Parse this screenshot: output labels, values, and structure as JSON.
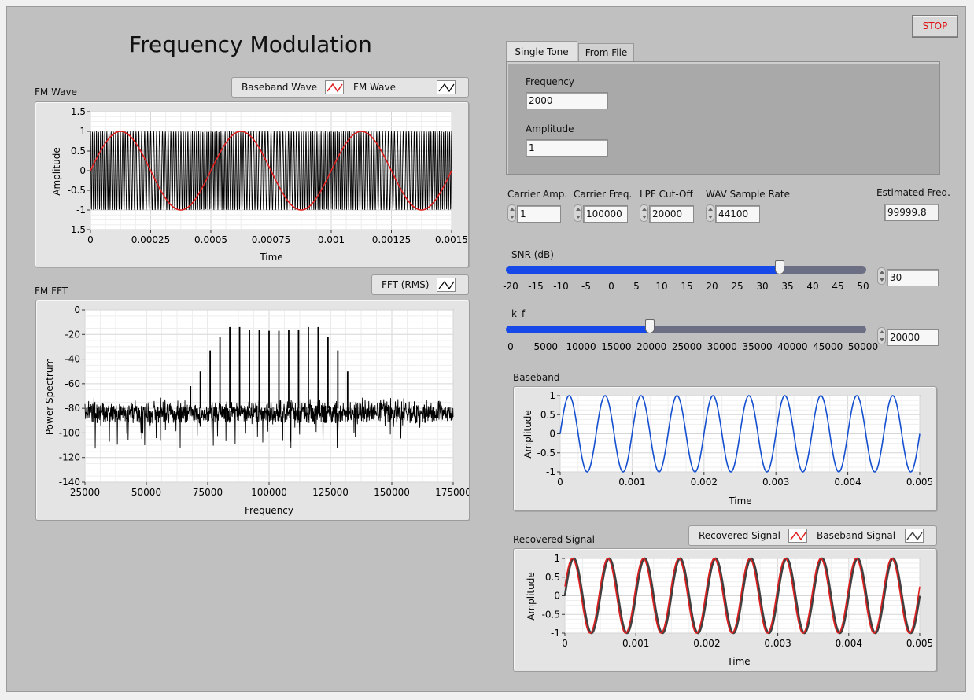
{
  "app": {
    "title": "Frequency Modulation",
    "stop_label": "STOP"
  },
  "fm_wave": {
    "label": "FM Wave",
    "legend": [
      {
        "name": "Baseband Wave",
        "color": "#e02020"
      },
      {
        "name": "FM Wave",
        "color": "#000000"
      }
    ],
    "xlabel": "Time",
    "ylabel": "Amplitude",
    "xticks": [
      "0",
      "0.00025",
      "0.0005",
      "0.00075",
      "0.001",
      "0.00125",
      "0.0015"
    ],
    "yticks": [
      "1.5",
      "1",
      "0.5",
      "0",
      "-0.5",
      "-1",
      "-1.5"
    ]
  },
  "fm_fft": {
    "label": "FM FFT",
    "legend": [
      {
        "name": "FFT (RMS)",
        "color": "#000000"
      }
    ],
    "xlabel": "Frequency",
    "ylabel": "Power Spectrum",
    "xticks": [
      "25000",
      "50000",
      "75000",
      "100000",
      "125000",
      "150000",
      "175000"
    ],
    "yticks": [
      "0",
      "-20",
      "-40",
      "-60",
      "-80",
      "-100",
      "-120",
      "-140"
    ]
  },
  "tabs": [
    {
      "label": "Single Tone",
      "active": true
    },
    {
      "label": "From File",
      "active": false
    }
  ],
  "single_tone": {
    "frequency_label": "Frequency",
    "frequency_value": "2000",
    "amplitude_label": "Amplitude",
    "amplitude_value": "1"
  },
  "controls": {
    "carrier_amp": {
      "label": "Carrier Amp.",
      "value": "1"
    },
    "carrier_freq": {
      "label": "Carrier Freq.",
      "value": "100000"
    },
    "lpf_cutoff": {
      "label": "LPF Cut-Off",
      "value": "20000"
    },
    "wav_rate": {
      "label": "WAV Sample Rate",
      "value": "44100"
    },
    "est_freq": {
      "label": "Estimated Freq.",
      "value": "99999.8"
    }
  },
  "snr": {
    "label": "SNR (dB)",
    "value": "30",
    "level": 0.76,
    "ticks": [
      "-20",
      "-15",
      "-10",
      "-5",
      "0",
      "5",
      "10",
      "15",
      "20",
      "25",
      "30",
      "35",
      "40",
      "45",
      "50"
    ]
  },
  "kf": {
    "label": "k_f",
    "value": "20000",
    "level": 0.4,
    "ticks": [
      "0",
      "5000",
      "10000",
      "15000",
      "20000",
      "25000",
      "30000",
      "35000",
      "40000",
      "45000",
      "50000"
    ]
  },
  "baseband": {
    "label": "Baseband",
    "xlabel": "Time",
    "ylabel": "Amplitude",
    "xticks": [
      "0",
      "0.001",
      "0.002",
      "0.003",
      "0.004",
      "0.005"
    ],
    "yticks": [
      "1",
      "0.5",
      "0",
      "-0.5",
      "-1"
    ]
  },
  "recovered": {
    "label": "Recovered Signal",
    "legend": [
      {
        "name": "Recovered Signal",
        "color": "#e02020"
      },
      {
        "name": "Baseband Signal",
        "color": "#404040"
      }
    ],
    "xlabel": "Time",
    "ylabel": "Amplitude",
    "xticks": [
      "0",
      "0.001",
      "0.002",
      "0.003",
      "0.004",
      "0.005"
    ],
    "yticks": [
      "1",
      "0.5",
      "0",
      "-0.5",
      "-1"
    ]
  },
  "chart_data": [
    {
      "type": "line",
      "title": "FM Wave",
      "xlabel": "Time",
      "ylabel": "Amplitude",
      "xlim": [
        0,
        0.0015
      ],
      "ylim": [
        -1.5,
        1.5
      ],
      "series": [
        {
          "name": "Baseband Wave",
          "x": [
            0,
            0.000125,
            0.00025,
            0.000375,
            0.0005,
            0.000625,
            0.00075,
            0.000875,
            0.001,
            0.001125,
            0.00125,
            0.001375,
            0.0015
          ],
          "values": [
            0,
            1,
            0,
            -1,
            0,
            1,
            0,
            -1,
            0,
            1,
            0,
            -1,
            0
          ]
        },
        {
          "name": "FM Wave",
          "x": [
            0,
            0.0015
          ],
          "values": [
            1,
            -1
          ]
        }
      ]
    },
    {
      "type": "line",
      "title": "FM FFT",
      "xlabel": "Frequency",
      "ylabel": "Power Spectrum",
      "xlim": [
        25000,
        175000
      ],
      "ylim": [
        -140,
        0
      ],
      "series": [
        {
          "name": "FFT (RMS)",
          "x": [
            68000,
            72000,
            76000,
            80000,
            84000,
            88000,
            92000,
            96000,
            100000,
            104000,
            108000,
            112000,
            116000,
            120000,
            124000,
            128000,
            132000
          ],
          "values": [
            -62,
            -50,
            -33,
            -22,
            -14,
            -14,
            -16,
            -16,
            -17,
            -17,
            -16,
            -16,
            -14,
            -14,
            -22,
            -33,
            -50
          ]
        }
      ]
    },
    {
      "type": "line",
      "title": "Baseband",
      "xlabel": "Time",
      "ylabel": "Amplitude",
      "xlim": [
        0,
        0.005
      ],
      "ylim": [
        -1,
        1
      ],
      "series": [
        {
          "name": "Baseband",
          "x": [
            0,
            0.000125,
            0.00025,
            0.000375,
            0.0005
          ],
          "values": [
            0,
            1,
            0,
            -1,
            0
          ]
        }
      ]
    },
    {
      "type": "line",
      "title": "Recovered Signal",
      "xlabel": "Time",
      "ylabel": "Amplitude",
      "xlim": [
        0,
        0.005
      ],
      "ylim": [
        -1,
        1
      ],
      "series": [
        {
          "name": "Recovered Signal",
          "x": [
            0,
            0.000125,
            0.00025,
            0.000375,
            0.0005
          ],
          "values": [
            0,
            1,
            0,
            -1,
            0
          ]
        },
        {
          "name": "Baseband Signal",
          "x": [
            0,
            0.000125,
            0.00025,
            0.000375,
            0.0005
          ],
          "values": [
            0,
            1,
            0,
            -1,
            0
          ]
        }
      ]
    }
  ]
}
